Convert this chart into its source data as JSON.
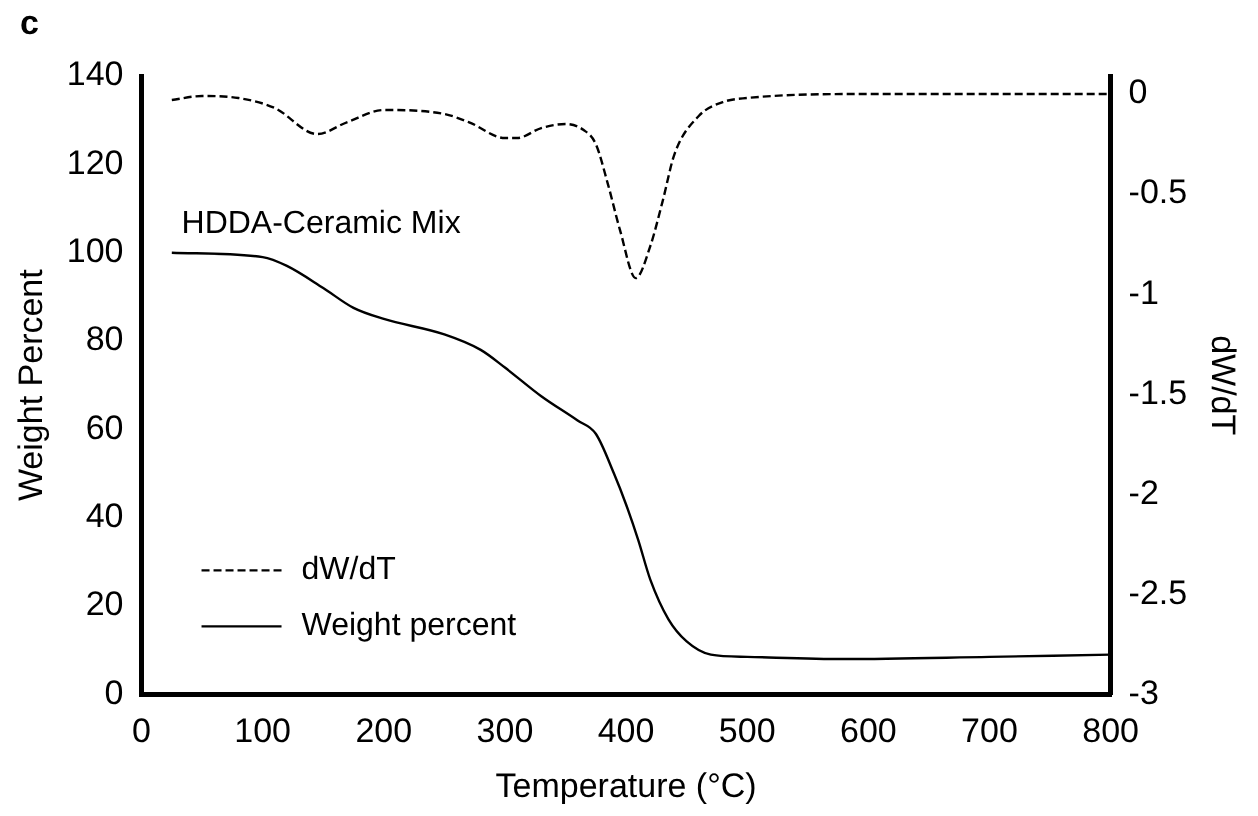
{
  "chart_data": {
    "type": "line",
    "xlabel": "Temperature (°C)",
    "ylabel": "Weight Percent",
    "y2label": "dW/dT",
    "annotations": [
      "c",
      "HDDA-Ceramic Mix"
    ],
    "xlim": [
      0,
      800
    ],
    "xticks": [
      0,
      100,
      200,
      300,
      400,
      500,
      600,
      700,
      800
    ],
    "ylim": [
      0,
      140
    ],
    "yticks": [
      0,
      20,
      40,
      60,
      80,
      100,
      120,
      140
    ],
    "y2lim": [
      -3,
      0.09
    ],
    "y2ticks": [
      0,
      -0.5,
      -1,
      -1.5,
      -2,
      -2.5,
      -3
    ],
    "grid": false,
    "legend": "bottom left",
    "marker": "none",
    "series": [
      {
        "name": "dW/dT",
        "color": "#000000",
        "axis": "y2",
        "line_style": "dashed",
        "x": [
          25,
          50,
          80,
          110,
          145,
          170,
          200,
          250,
          270,
          300,
          310,
          330,
          350,
          365,
          375,
          385,
          395,
          408,
          420,
          430,
          440,
          460,
          480,
          500,
          600,
          800
        ],
        "values": [
          -0.03,
          -0.01,
          -0.02,
          -0.07,
          -0.2,
          -0.14,
          -0.08,
          -0.1,
          -0.14,
          -0.22,
          -0.22,
          -0.17,
          -0.15,
          -0.18,
          -0.25,
          -0.45,
          -0.68,
          -0.92,
          -0.76,
          -0.54,
          -0.3,
          -0.11,
          -0.04,
          -0.02,
          0,
          0
        ]
      },
      {
        "name": "Weight percent",
        "color": "#000000",
        "axis": "y",
        "line_style": "solid",
        "x": [
          25,
          100,
          120,
          150,
          175,
          200,
          250,
          280,
          300,
          330,
          360,
          375,
          390,
          400,
          410,
          420,
          435,
          450,
          470,
          500,
          580,
          700,
          800
        ],
        "values": [
          100,
          99,
          97,
          92,
          87.5,
          85,
          81.5,
          78,
          74,
          67.5,
          62,
          59,
          50,
          43,
          35,
          26,
          17,
          12,
          9,
          8.5,
          8,
          8.5,
          9
        ]
      }
    ]
  }
}
